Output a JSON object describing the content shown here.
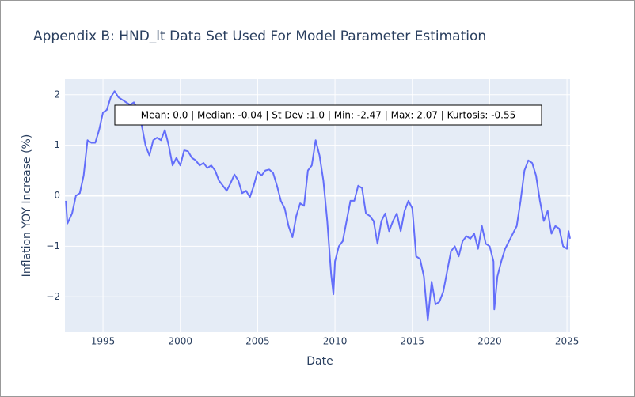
{
  "chart_data": {
    "type": "line",
    "title": "Appendix B: HND_lt Data Set Used For Model Parameter Estimation",
    "x_label": "Date",
    "y_label": "Inflation YOY Increase (%)",
    "annotation": "Mean: 0.0 | Median: -0.04 | St Dev :1.0 | Min: -2.47 | Max: 2.07 | Kurtosis: -0.55",
    "grid": true,
    "xlim": [
      1992.54,
      2025.2
    ],
    "ylim": [
      -2.7,
      2.31
    ],
    "xticks": [
      1995,
      2000,
      2005,
      2010,
      2015,
      2020,
      2025
    ],
    "yticks": [
      {
        "value": -2,
        "label": "−2"
      },
      {
        "value": -1,
        "label": "−1"
      },
      0,
      1,
      2
    ],
    "x": [
      1992.6,
      1992.7,
      1993.0,
      1993.25,
      1993.5,
      1993.75,
      1994.0,
      1994.25,
      1994.5,
      1994.75,
      1995.0,
      1995.25,
      1995.5,
      1995.75,
      1996.0,
      1996.25,
      1996.5,
      1996.75,
      1997.0,
      1997.25,
      1997.5,
      1997.75,
      1998.0,
      1998.25,
      1998.5,
      1998.75,
      1999.0,
      1999.25,
      1999.5,
      1999.75,
      2000.0,
      2000.25,
      2000.5,
      2000.75,
      2001.0,
      2001.25,
      2001.5,
      2001.75,
      2002.0,
      2002.25,
      2002.5,
      2002.75,
      2003.0,
      2003.25,
      2003.5,
      2003.75,
      2004.0,
      2004.25,
      2004.5,
      2004.75,
      2005.0,
      2005.25,
      2005.5,
      2005.75,
      2006.0,
      2006.25,
      2006.5,
      2006.75,
      2007.0,
      2007.25,
      2007.5,
      2007.75,
      2008.0,
      2008.25,
      2008.5,
      2008.75,
      2009.0,
      2009.25,
      2009.5,
      2009.75,
      2009.9,
      2010.0,
      2010.25,
      2010.5,
      2010.75,
      2011.0,
      2011.25,
      2011.5,
      2011.75,
      2012.0,
      2012.25,
      2012.5,
      2012.75,
      2013.0,
      2013.25,
      2013.5,
      2013.75,
      2014.0,
      2014.25,
      2014.5,
      2014.75,
      2015.0,
      2015.25,
      2015.5,
      2015.75,
      2016.0,
      2016.25,
      2016.5,
      2016.75,
      2017.0,
      2017.25,
      2017.5,
      2017.75,
      2018.0,
      2018.25,
      2018.5,
      2018.75,
      2019.0,
      2019.25,
      2019.5,
      2019.75,
      2020.0,
      2020.25,
      2020.3,
      2020.5,
      2020.75,
      2021.0,
      2021.25,
      2021.5,
      2021.75,
      2022.0,
      2022.25,
      2022.5,
      2022.75,
      2023.0,
      2023.25,
      2023.5,
      2023.75,
      2024.0,
      2024.25,
      2024.5,
      2024.75,
      2025.0,
      2025.1,
      2025.2
    ],
    "series": [
      {
        "name": "HND_lt",
        "color": "#636efa",
        "values": [
          -0.1,
          -0.55,
          -0.35,
          0.0,
          0.05,
          0.4,
          1.1,
          1.05,
          1.05,
          1.3,
          1.65,
          1.7,
          1.95,
          2.07,
          1.95,
          1.9,
          1.85,
          1.8,
          1.85,
          1.7,
          1.4,
          1.0,
          0.8,
          1.1,
          1.15,
          1.1,
          1.3,
          1.0,
          0.6,
          0.75,
          0.6,
          0.9,
          0.88,
          0.75,
          0.7,
          0.6,
          0.65,
          0.55,
          0.6,
          0.5,
          0.3,
          0.2,
          0.1,
          0.25,
          0.42,
          0.3,
          0.05,
          0.1,
          -0.03,
          0.2,
          0.48,
          0.4,
          0.5,
          0.52,
          0.45,
          0.2,
          -0.1,
          -0.25,
          -0.6,
          -0.82,
          -0.4,
          -0.15,
          -0.2,
          0.5,
          0.6,
          1.1,
          0.8,
          0.3,
          -0.5,
          -1.55,
          -1.95,
          -1.3,
          -1.0,
          -0.9,
          -0.5,
          -0.1,
          -0.1,
          0.2,
          0.15,
          -0.35,
          -0.4,
          -0.5,
          -0.95,
          -0.5,
          -0.35,
          -0.7,
          -0.5,
          -0.35,
          -0.7,
          -0.3,
          -0.1,
          -0.25,
          -1.2,
          -1.25,
          -1.6,
          -2.47,
          -1.7,
          -2.15,
          -2.1,
          -1.9,
          -1.5,
          -1.1,
          -1.0,
          -1.2,
          -0.9,
          -0.8,
          -0.85,
          -0.75,
          -1.05,
          -0.6,
          -0.95,
          -1.0,
          -1.3,
          -2.25,
          -1.6,
          -1.3,
          -1.05,
          -0.9,
          -0.75,
          -0.6,
          -0.1,
          0.5,
          0.7,
          0.65,
          0.4,
          -0.1,
          -0.5,
          -0.3,
          -0.75,
          -0.6,
          -0.65,
          -1.0,
          -1.05,
          -0.7,
          -0.85
        ]
      }
    ]
  }
}
